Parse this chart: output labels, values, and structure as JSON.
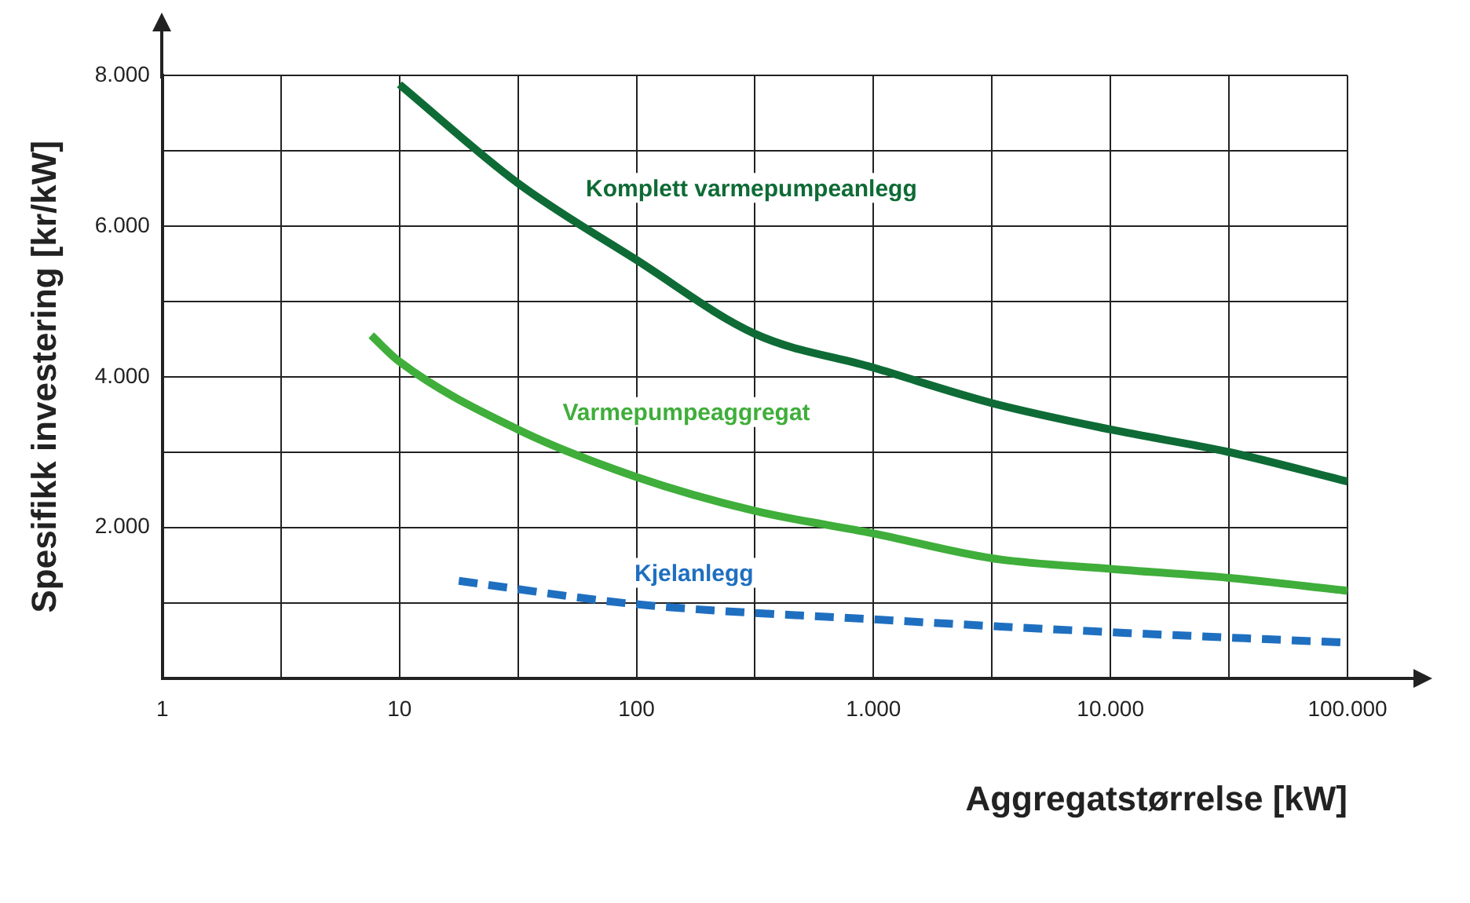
{
  "chart_data": {
    "type": "line",
    "xlabel": "Aggregatstørrelse [kW]",
    "ylabel": "Spesifikk investering [kr/kW]",
    "series": [
      {
        "name": "Komplett varmepumpeanlegg",
        "color": "#0e6b35",
        "x": [
          10,
          31.6,
          100,
          316,
          1000,
          3162,
          10000,
          31623,
          100000
        ],
        "values": [
          7880,
          6570,
          5550,
          4570,
          4120,
          3650,
          3300,
          3000,
          2610
        ]
      },
      {
        "name": "Varmepumpeaggregat",
        "color": "#3fae3a",
        "x": [
          7.6,
          10,
          31.6,
          100,
          316,
          1000,
          3162,
          10000,
          31623,
          100000
        ],
        "values": [
          4550,
          4200,
          3300,
          2670,
          2220,
          1920,
          1590,
          1450,
          1330,
          1160
        ]
      },
      {
        "name": "Kjelanlegg",
        "color": "#1f6fc0",
        "line_style": "dashed",
        "x": [
          17.8,
          100,
          1000,
          10000,
          100000
        ],
        "values": [
          1290,
          980,
          780,
          610,
          470
        ]
      }
    ],
    "log": "x",
    "xlim": [
      1,
      100000
    ],
    "ylim": [
      0,
      8000
    ],
    "xticks": [
      1,
      {
        "value": 3.162,
        "label": null
      },
      10,
      {
        "value": 31.62,
        "label": null
      },
      100,
      {
        "value": 316.2,
        "label": null
      },
      {
        "value": 1000,
        "label": "1.000"
      },
      {
        "value": 3162,
        "label": null
      },
      {
        "value": 10000,
        "label": "10.000"
      },
      {
        "value": 31623,
        "label": null
      },
      {
        "value": 100000,
        "label": "100.000"
      }
    ],
    "yticks": [
      {
        "value": 0,
        "label": null
      },
      {
        "value": 1000,
        "label": null
      },
      {
        "value": 2000,
        "label": "2.000"
      },
      {
        "value": 3000,
        "label": null
      },
      {
        "value": 4000,
        "label": "4.000"
      },
      {
        "value": 5000,
        "label": null
      },
      {
        "value": 6000,
        "label": "6.000"
      },
      {
        "value": 7000,
        "label": null
      },
      {
        "value": 8000,
        "label": "8.000"
      }
    ],
    "grid": true,
    "legend": false,
    "marker": "none",
    "line_style": "solid"
  }
}
